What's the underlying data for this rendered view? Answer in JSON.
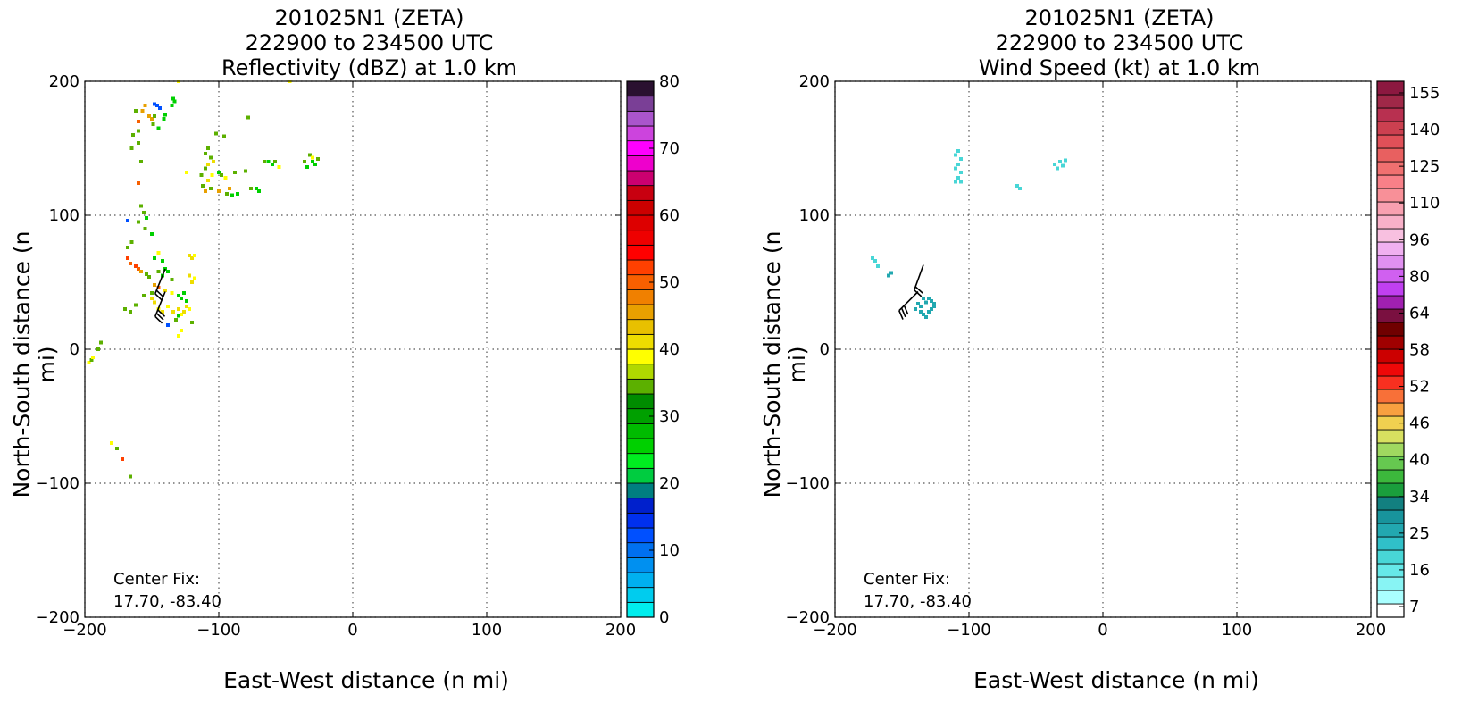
{
  "chart_data": [
    {
      "type": "scatter",
      "title_lines": [
        "201025N1 (ZETA)",
        "222900 to 234500 UTC",
        "Reflectivity (dBZ) at 1.0 km"
      ],
      "xlabel": "East-West distance (n mi)",
      "ylabel": "North-South distance (n mi)",
      "xlim": [
        -200,
        200
      ],
      "ylim": [
        -200,
        200
      ],
      "xticks": [
        -200,
        -100,
        0,
        100,
        200
      ],
      "yticks": [
        -200,
        -100,
        0,
        100,
        200
      ],
      "xtick_labels": [
        "−200",
        "−100",
        "0",
        "100",
        "200"
      ],
      "ytick_labels": [
        "−200",
        "−100",
        "0",
        "100",
        "200"
      ],
      "grid": true,
      "center_fix_label": "Center Fix:",
      "center_fix_value": "17.70, -83.40",
      "colorbar": {
        "min": 0,
        "max": 80,
        "step": 2.5,
        "ticks": [
          "0",
          "10",
          "20",
          "30",
          "40",
          "50",
          "60",
          "70",
          "80"
        ],
        "colors": [
          "#00eeee",
          "#00ccee",
          "#00b0f0",
          "#0090f0",
          "#0070f0",
          "#0050ff",
          "#0030ee",
          "#0020cc",
          "#007f80",
          "#00cc40",
          "#00ee20",
          "#00d000",
          "#00bb00",
          "#00a000",
          "#008c00",
          "#5cb000",
          "#b0d800",
          "#ffff00",
          "#eedd00",
          "#e8c000",
          "#e8a000",
          "#f08000",
          "#f86000",
          "#ff4000",
          "#ff0000",
          "#ee0000",
          "#dd0000",
          "#cc0000",
          "#c80010",
          "#cc0070",
          "#ee00cc",
          "#ff00ff",
          "#cc44dd",
          "#aa55cc",
          "#7a3f96",
          "#2a1030"
        ]
      },
      "points": [
        [
          -130,
          200,
          38
        ],
        [
          -78,
          173,
          35
        ],
        [
          -102,
          161,
          35
        ],
        [
          -47,
          200,
          38
        ],
        [
          -135,
          182,
          25
        ],
        [
          -134,
          187,
          25
        ],
        [
          -133,
          185,
          25
        ],
        [
          -152,
          174,
          45
        ],
        [
          -150,
          172,
          45
        ],
        [
          -148,
          174,
          35
        ],
        [
          -155,
          182,
          45
        ],
        [
          -148,
          183,
          12
        ],
        [
          -146,
          182,
          12
        ],
        [
          -144,
          180,
          12
        ],
        [
          -140,
          175,
          25
        ],
        [
          -141,
          172,
          25
        ],
        [
          -145,
          165,
          25
        ],
        [
          -149,
          168,
          35
        ],
        [
          -160,
          170,
          50
        ],
        [
          -157,
          178,
          45
        ],
        [
          -162,
          178,
          35
        ],
        [
          -160,
          163,
          35
        ],
        [
          -164,
          160,
          35
        ],
        [
          -160,
          154,
          35
        ],
        [
          -158,
          140,
          35
        ],
        [
          -165,
          150,
          35
        ],
        [
          -160,
          124,
          50
        ],
        [
          -108,
          150,
          35
        ],
        [
          -110,
          146,
          35
        ],
        [
          -106,
          143,
          35
        ],
        [
          -104,
          140,
          40
        ],
        [
          -108,
          138,
          40
        ],
        [
          -110,
          135,
          35
        ],
        [
          -105,
          130,
          38
        ],
        [
          -108,
          126,
          40
        ],
        [
          -106,
          120,
          35
        ],
        [
          -110,
          118,
          45
        ],
        [
          -112,
          122,
          35
        ],
        [
          -113,
          130,
          35
        ],
        [
          -100,
          132,
          25
        ],
        [
          -98,
          130,
          35
        ],
        [
          -95,
          128,
          38
        ],
        [
          -92,
          120,
          45
        ],
        [
          -88,
          132,
          35
        ],
        [
          -80,
          133,
          35
        ],
        [
          -76,
          120,
          35
        ],
        [
          -100,
          118,
          45
        ],
        [
          -94,
          116,
          35
        ],
        [
          -90,
          115,
          25
        ],
        [
          -86,
          116,
          25
        ],
        [
          -72,
          120,
          25
        ],
        [
          -70,
          118,
          25
        ],
        [
          -63,
          140,
          25
        ],
        [
          -60,
          138,
          25
        ],
        [
          -58,
          140,
          35
        ],
        [
          -55,
          136,
          38
        ],
        [
          -66,
          140,
          35
        ],
        [
          -32,
          145,
          35
        ],
        [
          -30,
          140,
          25
        ],
        [
          -28,
          138,
          25
        ],
        [
          -34,
          136,
          25
        ],
        [
          -36,
          140,
          35
        ],
        [
          -26,
          142,
          35
        ],
        [
          -30,
          143,
          38
        ],
        [
          -124,
          132,
          38
        ],
        [
          -96,
          159,
          35
        ],
        [
          -158,
          107,
          35
        ],
        [
          -156,
          102,
          35
        ],
        [
          -154,
          98,
          25
        ],
        [
          -160,
          95,
          35
        ],
        [
          -168,
          96,
          12
        ],
        [
          -155,
          90,
          35
        ],
        [
          -150,
          86,
          25
        ],
        [
          -165,
          80,
          35
        ],
        [
          -168,
          76,
          35
        ],
        [
          -145,
          72,
          38
        ],
        [
          -148,
          68,
          25
        ],
        [
          -142,
          66,
          25
        ],
        [
          -168,
          68,
          52
        ],
        [
          -166,
          64,
          50
        ],
        [
          -162,
          62,
          52
        ],
        [
          -160,
          60,
          50
        ],
        [
          -158,
          58,
          45
        ],
        [
          -154,
          56,
          35
        ],
        [
          -152,
          54,
          35
        ],
        [
          -145,
          58,
          35
        ],
        [
          -142,
          55,
          25
        ],
        [
          -140,
          60,
          25
        ],
        [
          -138,
          58,
          25
        ],
        [
          -135,
          52,
          35
        ],
        [
          -120,
          68,
          40
        ],
        [
          -118,
          70,
          38
        ],
        [
          -122,
          70,
          40
        ],
        [
          -122,
          55,
          40
        ],
        [
          -118,
          53,
          38
        ],
        [
          -120,
          50,
          40
        ],
        [
          -145,
          46,
          50
        ],
        [
          -148,
          48,
          45
        ],
        [
          -140,
          44,
          40
        ],
        [
          -135,
          42,
          38
        ],
        [
          -130,
          40,
          25
        ],
        [
          -128,
          38,
          25
        ],
        [
          -126,
          42,
          25
        ],
        [
          -124,
          36,
          25
        ],
        [
          -150,
          38,
          40
        ],
        [
          -148,
          35,
          40
        ],
        [
          -145,
          30,
          38
        ],
        [
          -142,
          28,
          40
        ],
        [
          -138,
          32,
          38
        ],
        [
          -134,
          28,
          40
        ],
        [
          -130,
          30,
          40
        ],
        [
          -128,
          26,
          38
        ],
        [
          -126,
          28,
          40
        ],
        [
          -122,
          30,
          38
        ],
        [
          -124,
          32,
          40
        ],
        [
          -130,
          25,
          25
        ],
        [
          -132,
          22,
          35
        ],
        [
          -128,
          14,
          38
        ],
        [
          -130,
          10,
          38
        ],
        [
          -120,
          20,
          35
        ],
        [
          -138,
          18,
          12
        ],
        [
          -170,
          30,
          35
        ],
        [
          -166,
          28,
          35
        ],
        [
          -162,
          33,
          35
        ],
        [
          -156,
          40,
          35
        ],
        [
          -150,
          42,
          35
        ],
        [
          -197,
          -10,
          38
        ],
        [
          -190,
          0,
          35
        ],
        [
          -188,
          5,
          35
        ],
        [
          -195,
          -8,
          35
        ],
        [
          -180,
          -70,
          38
        ],
        [
          -176,
          -74,
          35
        ],
        [
          -172,
          -82,
          52
        ],
        [
          -166,
          -95,
          35
        ],
        [
          -194,
          -6,
          38
        ]
      ],
      "barbs": [
        {
          "x": -140,
          "y": 43,
          "dir_deg": 158,
          "flags": 3
        },
        {
          "x": -140,
          "y": 60,
          "dir_deg": 158,
          "flags": 2
        }
      ]
    },
    {
      "type": "scatter",
      "title_lines": [
        "201025N1 (ZETA)",
        "222900 to 234500 UTC",
        "Wind Speed (kt) at 1.0 km"
      ],
      "xlabel": "East-West distance (n mi)",
      "ylabel": "North-South distance (n mi)",
      "xlim": [
        -200,
        200
      ],
      "ylim": [
        -200,
        200
      ],
      "xticks": [
        -200,
        -100,
        0,
        100,
        200
      ],
      "yticks": [
        -200,
        -100,
        0,
        100,
        200
      ],
      "xtick_labels": [
        "−200",
        "−100",
        "0",
        "100",
        "200"
      ],
      "ytick_labels": [
        "−200",
        "−100",
        "0",
        "100",
        "200"
      ],
      "grid": true,
      "center_fix_label": "Center Fix:",
      "center_fix_value": "17.70, -83.40",
      "colorbar": {
        "min": 5,
        "max": 160,
        "ticks": [
          "7",
          "16",
          "25",
          "34",
          "40",
          "46",
          "52",
          "58",
          "64",
          "80",
          "96",
          "110",
          "125",
          "140",
          "155"
        ],
        "colors": [
          "#ffffff",
          "#aaffff",
          "#88f4f4",
          "#66e8e8",
          "#48d6d6",
          "#30c0c8",
          "#22a8b0",
          "#18949c",
          "#128080",
          "#1a9e3c",
          "#3cb83c",
          "#66c850",
          "#a0d860",
          "#d8e060",
          "#f0d050",
          "#f8a040",
          "#f87038",
          "#f83020",
          "#ee0808",
          "#cc0000",
          "#a00000",
          "#700000",
          "#7a1040",
          "#a020b0",
          "#c040f0",
          "#d060f0",
          "#e090f0",
          "#f0b0f0",
          "#f8c0e0",
          "#f8b0c8",
          "#f8a0b0",
          "#f89098",
          "#f88088",
          "#f07070",
          "#e86060",
          "#e05058",
          "#cc4050",
          "#b83050",
          "#a02848",
          "#8c1840"
        ]
      },
      "points": [
        [
          -108,
          148,
          22
        ],
        [
          -110,
          145,
          22
        ],
        [
          -106,
          142,
          22
        ],
        [
          -108,
          138,
          22
        ],
        [
          -110,
          135,
          22
        ],
        [
          -106,
          132,
          22
        ],
        [
          -108,
          128,
          22
        ],
        [
          -110,
          125,
          22
        ],
        [
          -106,
          125,
          22
        ],
        [
          -64,
          122,
          22
        ],
        [
          -62,
          120,
          22
        ],
        [
          -36,
          138,
          22
        ],
        [
          -32,
          140,
          22
        ],
        [
          -28,
          141,
          22
        ],
        [
          -34,
          135,
          22
        ],
        [
          -30,
          137,
          22
        ],
        [
          -172,
          68,
          22
        ],
        [
          -170,
          66,
          22
        ],
        [
          -168,
          62,
          22
        ],
        [
          -158,
          57,
          30
        ],
        [
          -160,
          55,
          30
        ],
        [
          -134,
          38,
          29
        ],
        [
          -130,
          38,
          29
        ],
        [
          -128,
          36,
          29
        ],
        [
          -126,
          34,
          29
        ],
        [
          -132,
          35,
          29
        ],
        [
          -138,
          34,
          29
        ],
        [
          -140,
          30,
          29
        ],
        [
          -136,
          28,
          29
        ],
        [
          -134,
          26,
          29
        ],
        [
          -132,
          24,
          29
        ],
        [
          -130,
          28,
          29
        ],
        [
          -128,
          30,
          29
        ],
        [
          -126,
          32,
          29
        ],
        [
          -136,
          32,
          29
        ]
      ],
      "barbs": [
        {
          "x": -138,
          "y": 43,
          "dir_deg": 135,
          "flags": 3
        },
        {
          "x": -134,
          "y": 63,
          "dir_deg": 160,
          "flags": 2
        }
      ]
    }
  ]
}
